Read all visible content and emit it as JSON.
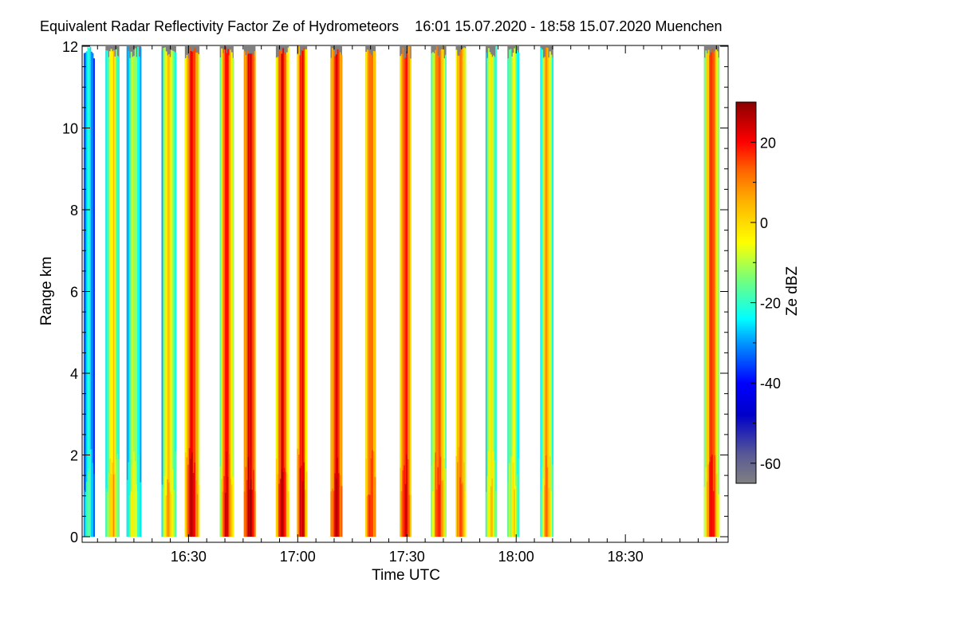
{
  "chart_data": {
    "type": "heatmap",
    "title": "Equivalent Radar Reflectivity Factor Ze of Hydrometeors    16:01 15.07.2020 - 18:58 15.07.2020 Muenchen",
    "xlabel": "Time UTC",
    "ylabel": "Range km",
    "x_unit": "minutes UTC",
    "xlim": [
      961,
      1138
    ],
    "ylim": [
      0,
      12
    ],
    "x_ticks": [
      990,
      1020,
      1050,
      1080,
      1110
    ],
    "x_tick_labels": [
      "16:30",
      "17:00",
      "17:30",
      "18:00",
      "18:30"
    ],
    "y_ticks": [
      0,
      2,
      4,
      6,
      8,
      10,
      12
    ],
    "y_tick_labels": [
      "0",
      "2",
      "4",
      "6",
      "8",
      "10",
      "12"
    ],
    "colorbar": {
      "label": "Ze dBZ",
      "range": [
        -65,
        30
      ],
      "ticks": [
        20,
        0,
        -20,
        -40,
        -60
      ],
      "tick_labels": [
        "20",
        "0",
        "-20",
        "-40",
        "-60"
      ],
      "no_signal_color": "#808080",
      "colors": [
        "#808080",
        "#0000c8",
        "#0000ff",
        "#00ffff",
        "#ffff00",
        "#ff8000",
        "#ff0000",
        "#8b0000"
      ]
    },
    "no_data_color": "#ffffff",
    "series": [
      {
        "x_start": 961.2,
        "x_end": 964.2,
        "gray_top_km": 0,
        "echo_top_km": 12,
        "core_dbz": -22,
        "fringe_dbz": -35
      },
      {
        "x_start": 967.2,
        "x_end": 971.0,
        "gray_top_km": 12,
        "echo_top_km": 12,
        "core_dbz": 0,
        "fringe_dbz": -25
      },
      {
        "x_start": 973.0,
        "x_end": 977.0,
        "gray_top_km": 12,
        "echo_top_km": 12,
        "core_dbz": -8,
        "fringe_dbz": -30
      },
      {
        "x_start": 982.6,
        "x_end": 986.6,
        "gray_top_km": 12,
        "echo_top_km": 12,
        "core_dbz": 2,
        "fringe_dbz": -25
      },
      {
        "x_start": 989.0,
        "x_end": 993.0,
        "gray_top_km": 12,
        "echo_top_km": 12,
        "core_dbz": 20,
        "fringe_dbz": -5
      },
      {
        "x_start": 998.6,
        "x_end": 1002.4,
        "gray_top_km": 12,
        "echo_top_km": 12,
        "core_dbz": 20,
        "fringe_dbz": -15
      },
      {
        "x_start": 1005.2,
        "x_end": 1008.4,
        "gray_top_km": 12,
        "echo_top_km": 12,
        "core_dbz": 21,
        "fringe_dbz": 5
      },
      {
        "x_start": 1014.0,
        "x_end": 1017.6,
        "gray_top_km": 12,
        "echo_top_km": 12,
        "core_dbz": 22,
        "fringe_dbz": -5
      },
      {
        "x_start": 1019.8,
        "x_end": 1022.6,
        "gray_top_km": 12,
        "echo_top_km": 12,
        "core_dbz": 21,
        "fringe_dbz": 0
      },
      {
        "x_start": 1029.0,
        "x_end": 1032.2,
        "gray_top_km": 12,
        "echo_top_km": 12,
        "core_dbz": 20,
        "fringe_dbz": 5
      },
      {
        "x_start": 1038.6,
        "x_end": 1041.4,
        "gray_top_km": 12,
        "echo_top_km": 12,
        "core_dbz": 12,
        "fringe_dbz": 0
      },
      {
        "x_start": 1048.0,
        "x_end": 1051.2,
        "gray_top_km": 12,
        "echo_top_km": 12,
        "core_dbz": 20,
        "fringe_dbz": 0
      },
      {
        "x_start": 1056.6,
        "x_end": 1060.8,
        "gray_top_km": 12,
        "echo_top_km": 12,
        "core_dbz": 10,
        "fringe_dbz": -15
      },
      {
        "x_start": 1063.4,
        "x_end": 1066.2,
        "gray_top_km": 12,
        "echo_top_km": 12,
        "core_dbz": 12,
        "fringe_dbz": -5
      },
      {
        "x_start": 1071.6,
        "x_end": 1074.6,
        "gray_top_km": 12,
        "echo_top_km": 12,
        "core_dbz": -3,
        "fringe_dbz": -25
      },
      {
        "x_start": 1077.6,
        "x_end": 1080.8,
        "gray_top_km": 12,
        "echo_top_km": 12,
        "core_dbz": -5,
        "fringe_dbz": -25
      },
      {
        "x_start": 1086.6,
        "x_end": 1090.2,
        "gray_top_km": 12,
        "echo_top_km": 12,
        "core_dbz": 5,
        "fringe_dbz": -22
      },
      {
        "x_start": 1131.6,
        "x_end": 1135.8,
        "gray_top_km": 12,
        "echo_top_km": 12,
        "core_dbz": 14,
        "fringe_dbz": -15
      }
    ]
  }
}
